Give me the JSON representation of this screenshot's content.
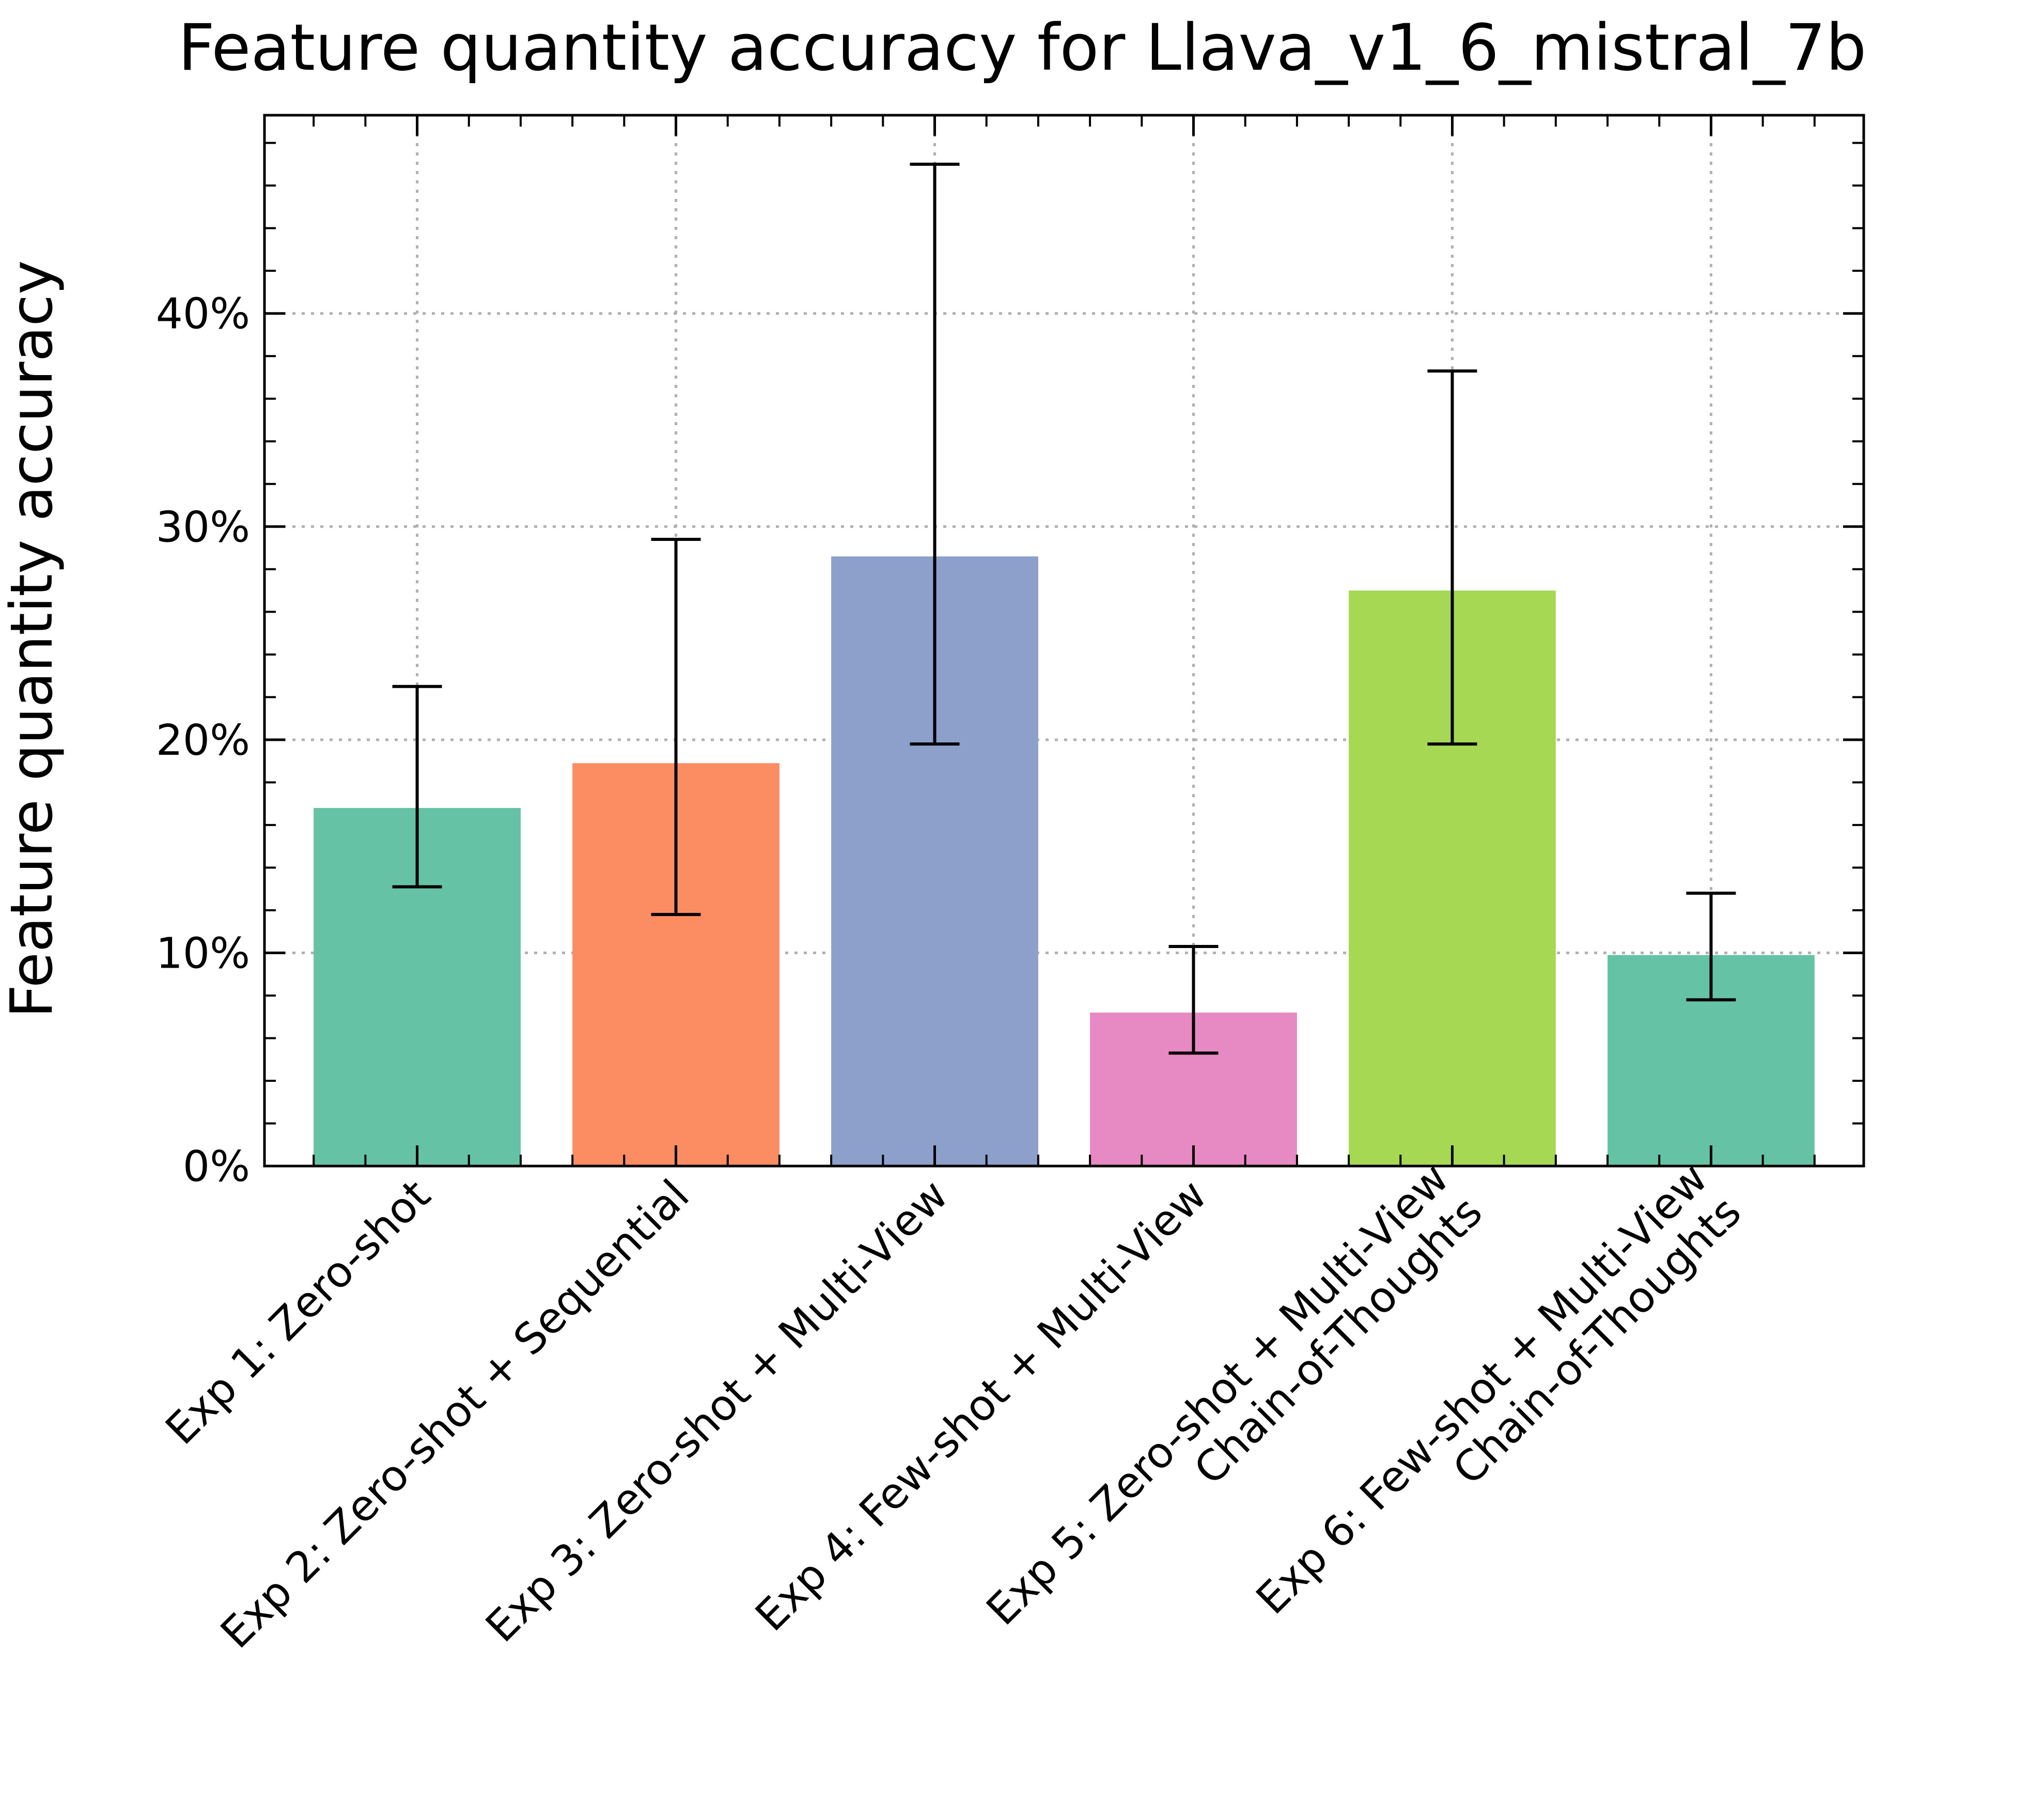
{
  "chart_data": {
    "type": "bar",
    "title": "Feature quantity accuracy for Llava_v1_6_mistral_7b",
    "xlabel": "",
    "ylabel": "Feature quantity accuracy",
    "ylim": [
      0,
      49.3
    ],
    "y_ticks": [
      0,
      10,
      20,
      30,
      40
    ],
    "y_tick_labels": [
      "0%",
      "10%",
      "20%",
      "30%",
      "40%"
    ],
    "grid": true,
    "categories": [
      [
        "Exp 1: Zero-shot"
      ],
      [
        "Exp 2: Zero-shot + Sequential"
      ],
      [
        "Exp 3: Zero-shot + Multi-View"
      ],
      [
        "Exp 4: Few-shot + Multi-View"
      ],
      [
        "Exp 5: Zero-shot + Multi-View",
        "Chain-of-Thoughts"
      ],
      [
        "Exp 6: Few-shot + Multi-View",
        "Chain-of-Thoughts"
      ]
    ],
    "values": [
      16.8,
      18.9,
      28.6,
      7.2,
      27.0,
      9.9
    ],
    "error_low": [
      13.1,
      11.8,
      19.8,
      5.3,
      19.8,
      7.8
    ],
    "error_high": [
      22.5,
      29.4,
      47.0,
      10.3,
      37.3,
      12.8
    ],
    "colors": [
      "#66c2a5",
      "#fc8d62",
      "#8da0cb",
      "#e78ac3",
      "#a6d854",
      "#66c2a5"
    ]
  }
}
